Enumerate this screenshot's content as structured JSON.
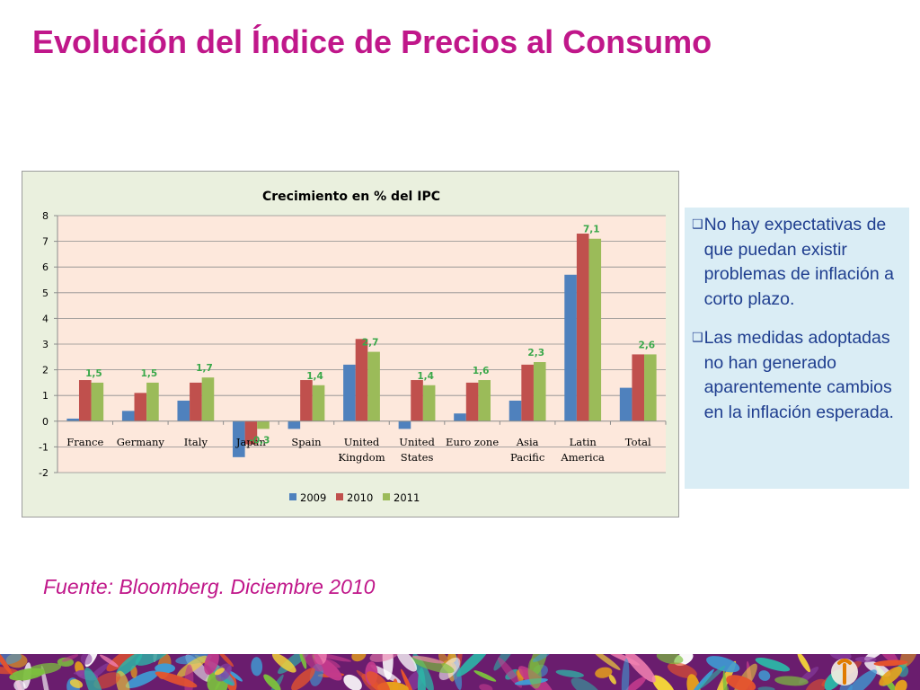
{
  "slide": {
    "title": "Evolución del Índice de Precios al Consumo",
    "source": "Fuente: Bloomberg. Diciembre 2010"
  },
  "notes": [
    "No hay expectativas de que puedan existir problemas de inflación a corto plazo.",
    "Las medidas adoptadas no han generado aparentemente cambios en la inflación esperada."
  ],
  "colors": {
    "title": "#c0178a",
    "plot_background": "#fde8dc",
    "chart_background": "#eaf0de",
    "note_background": "#daedf5",
    "data_label": "#3aa84a"
  },
  "chart_data": {
    "type": "bar",
    "title": "Crecimiento en % del IPC",
    "categories": [
      [
        "France"
      ],
      [
        "Germany"
      ],
      [
        "Italy"
      ],
      [
        "Japan"
      ],
      [
        "Spain"
      ],
      [
        "United",
        "Kingdom"
      ],
      [
        "United",
        "States"
      ],
      [
        "Euro zone"
      ],
      [
        "Asia",
        "Pacific"
      ],
      [
        "Latin",
        "America"
      ],
      [
        "Total"
      ]
    ],
    "series": [
      {
        "name": "2009",
        "color": "#4f81bd",
        "values": [
          0.1,
          0.4,
          0.8,
          -1.4,
          -0.3,
          2.2,
          -0.3,
          0.3,
          0.8,
          5.7,
          1.3
        ]
      },
      {
        "name": "2010",
        "color": "#c0504d",
        "values": [
          1.6,
          1.1,
          1.5,
          -0.9,
          1.6,
          3.2,
          1.6,
          1.5,
          2.2,
          7.3,
          2.6
        ]
      },
      {
        "name": "2011",
        "color": "#9bbb59",
        "values": [
          1.5,
          1.5,
          1.7,
          -0.3,
          1.4,
          2.7,
          1.4,
          1.6,
          2.3,
          7.1,
          2.6
        ]
      }
    ],
    "data_labels": {
      "series": "2011",
      "labels": [
        "1,5",
        "1,5",
        "1,7",
        "-0,3",
        "1,4",
        "2,7",
        "1,4",
        "1,6",
        "2,3",
        "7,1",
        "2,6"
      ]
    },
    "ylim": [
      -2,
      8
    ],
    "yticks": [
      -2,
      -1,
      0,
      1,
      2,
      3,
      4,
      5,
      6,
      7,
      8
    ],
    "grid": true,
    "legend": "bottom"
  }
}
